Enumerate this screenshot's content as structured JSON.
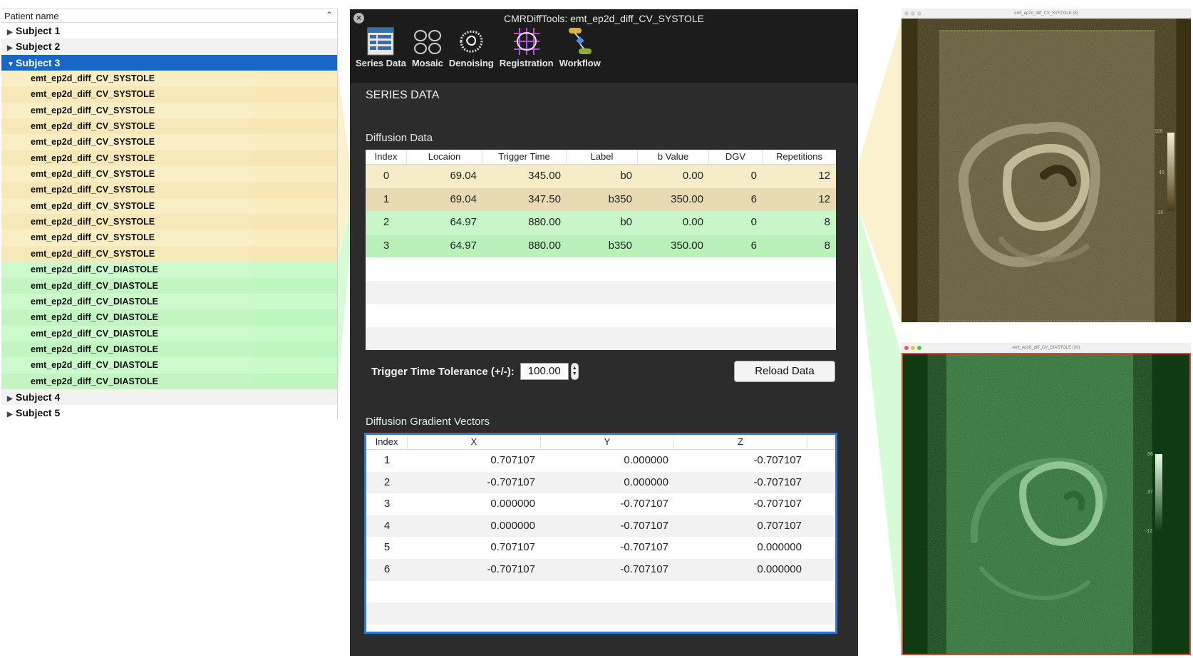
{
  "tree": {
    "header": "Patient name",
    "subjects_before": [
      {
        "label": "Subject 1"
      },
      {
        "label": "Subject 2"
      }
    ],
    "selected_subject": {
      "label": "Subject 3"
    },
    "systole_series": [
      "emt_ep2d_diff_CV_SYSTOLE",
      "emt_ep2d_diff_CV_SYSTOLE",
      "emt_ep2d_diff_CV_SYSTOLE",
      "emt_ep2d_diff_CV_SYSTOLE",
      "emt_ep2d_diff_CV_SYSTOLE",
      "emt_ep2d_diff_CV_SYSTOLE",
      "emt_ep2d_diff_CV_SYSTOLE",
      "emt_ep2d_diff_CV_SYSTOLE",
      "emt_ep2d_diff_CV_SYSTOLE",
      "emt_ep2d_diff_CV_SYSTOLE",
      "emt_ep2d_diff_CV_SYSTOLE",
      "emt_ep2d_diff_CV_SYSTOLE"
    ],
    "diastole_series": [
      "emt_ep2d_diff_CV_DIASTOLE",
      "emt_ep2d_diff_CV_DIASTOLE",
      "emt_ep2d_diff_CV_DIASTOLE",
      "emt_ep2d_diff_CV_DIASTOLE",
      "emt_ep2d_diff_CV_DIASTOLE",
      "emt_ep2d_diff_CV_DIASTOLE",
      "emt_ep2d_diff_CV_DIASTOLE",
      "emt_ep2d_diff_CV_DIASTOLE"
    ],
    "subjects_after": [
      {
        "label": "Subject 4"
      },
      {
        "label": "Subject 5"
      }
    ]
  },
  "window": {
    "title": "CMRDiffTools: emt_ep2d_diff_CV_SYSTOLE",
    "toolbar": [
      {
        "label": "Series Data",
        "icon": "series-data-icon"
      },
      {
        "label": "Mosaic",
        "icon": "mosaic-icon"
      },
      {
        "label": "Denoising",
        "icon": "denoising-icon"
      },
      {
        "label": "Registration",
        "icon": "registration-icon"
      },
      {
        "label": "Workflow",
        "icon": "workflow-icon"
      }
    ],
    "section_title": "SERIES DATA"
  },
  "diffusion": {
    "title": "Diffusion Data",
    "columns": [
      "Index",
      "Locaion",
      "Trigger Time",
      "Label",
      "b Value",
      "DGV",
      "Repetitions"
    ],
    "rows": [
      {
        "index": "0",
        "location": "69.04",
        "trigger": "345.00",
        "label": "b0",
        "bvalue": "0.00",
        "dgv": "0",
        "reps": "12"
      },
      {
        "index": "1",
        "location": "69.04",
        "trigger": "347.50",
        "label": "b350",
        "bvalue": "350.00",
        "dgv": "6",
        "reps": "12"
      },
      {
        "index": "2",
        "location": "64.97",
        "trigger": "880.00",
        "label": "b0",
        "bvalue": "0.00",
        "dgv": "0",
        "reps": "8"
      },
      {
        "index": "3",
        "location": "64.97",
        "trigger": "880.00",
        "label": "b350",
        "bvalue": "350.00",
        "dgv": "6",
        "reps": "8"
      }
    ]
  },
  "tolerance": {
    "label": "Trigger Time Tolerance (+/-):",
    "value": "100.00"
  },
  "reload_label": "Reload Data",
  "gradients": {
    "title": "Diffusion Gradient Vectors",
    "columns": [
      "Index",
      "X",
      "Y",
      "Z"
    ],
    "rows": [
      {
        "index": "1",
        "x": "0.707107",
        "y": "0.000000",
        "z": "-0.707107"
      },
      {
        "index": "2",
        "x": "-0.707107",
        "y": "0.000000",
        "z": "-0.707107"
      },
      {
        "index": "3",
        "x": "0.000000",
        "y": "-0.707107",
        "z": "-0.707107"
      },
      {
        "index": "4",
        "x": "0.000000",
        "y": "-0.707107",
        "z": "0.707107"
      },
      {
        "index": "5",
        "x": "0.707107",
        "y": "-0.707107",
        "z": "0.000000"
      },
      {
        "index": "6",
        "x": "-0.707107",
        "y": "-0.707107",
        "z": "0.000000"
      }
    ]
  },
  "viewers": {
    "systole": {
      "title": "emt_ep2d_diff_CV_SYSTOLE (8)",
      "scale": [
        "106",
        "45",
        "-16"
      ],
      "tint": "#5a5030"
    },
    "diastole": {
      "title": "emt_ep2d_diff_CV_DIASTOLE (20)",
      "scale": [
        "86",
        "37",
        "-12"
      ],
      "tint": "#1f6a2a"
    }
  },
  "colors": {
    "selection": "#1866c8",
    "systole_highlight": "#f7ecc8",
    "diastole_highlight": "#c8f6c8",
    "window_bg": "#2c2c2c",
    "gradient_border": "#2d7ad6"
  }
}
